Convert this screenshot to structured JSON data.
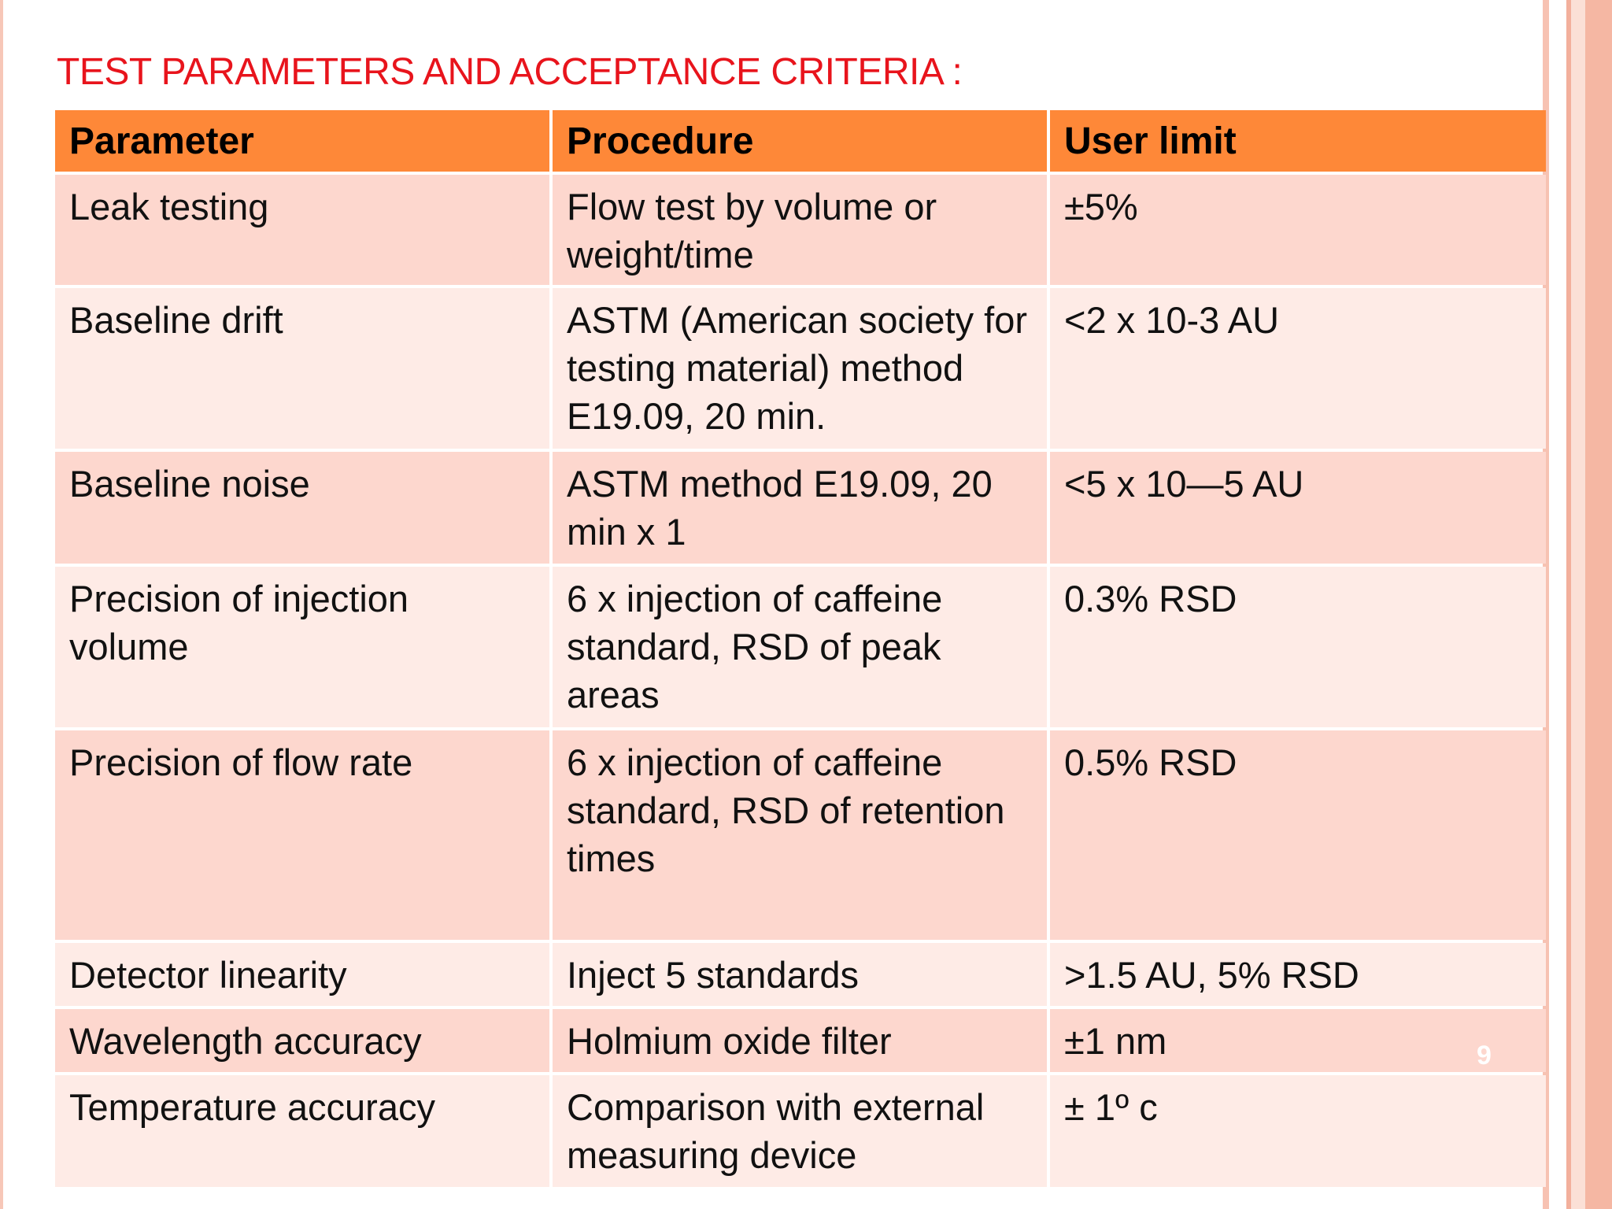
{
  "title": "TEST PARAMETERS AND ACCEPTANCE CRITERIA :",
  "table": {
    "headers": [
      "Parameter",
      "Procedure",
      "User limit"
    ],
    "rows": [
      [
        "Leak testing",
        "Flow test by volume or weight/time",
        "±5%"
      ],
      [
        "Baseline drift",
        "ASTM (American society for testing material) method E19.09, 20 min.",
        "<2 x 10-3 AU"
      ],
      [
        "Baseline noise",
        "ASTM method E19.09, 20 min x 1",
        "<5 x 10—5 AU"
      ],
      [
        "Precision of injection volume",
        "6 x injection of caffeine standard, RSD of peak areas",
        "0.3% RSD"
      ],
      [
        "Precision of flow rate",
        "6 x injection of caffeine standard, RSD of retention times",
        "0.5% RSD"
      ],
      [
        "Detector linearity",
        "Inject 5 standards",
        ">1.5 AU, 5% RSD"
      ],
      [
        "Wavelength accuracy",
        "Holmium oxide filter",
        "±1 nm"
      ],
      [
        "Temperature accuracy",
        "Comparison with external measuring device",
        "± 1º c"
      ]
    ]
  },
  "page_number": "9",
  "colors": {
    "title": "#e8141c",
    "header_bg": "#fe8838",
    "row_odd": "#fdd7ce",
    "row_even": "#feebe6"
  }
}
